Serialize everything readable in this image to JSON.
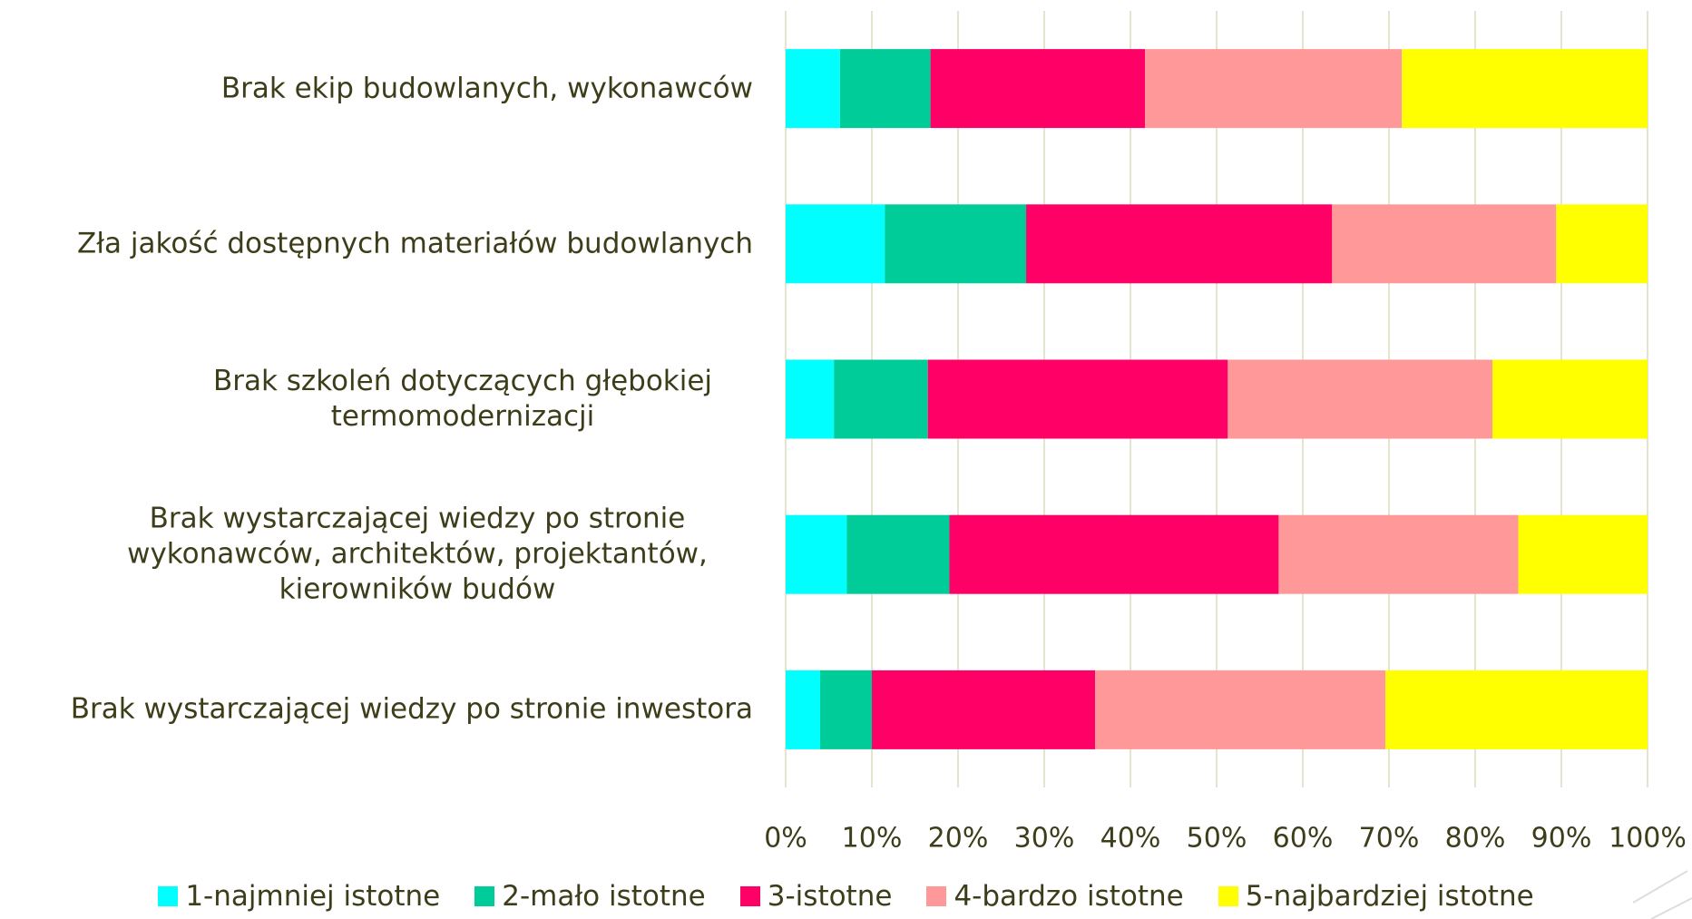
{
  "chart_data": {
    "type": "stacked_bar_horizontal",
    "categories": [
      "Brak ekip budowlanych, wykonawców",
      "Zła jakość dostępnych materiałów budowlanych",
      "Brak szkoleń dotyczących głębokiej termomodernizacji",
      "Brak wystarczającej wiedzy po stronie wykonawców, architektów, projektantów, kierowników budów",
      "Brak wystarczającej wiedzy po stronie inwestora"
    ],
    "series": [
      {
        "name": "1-najmniej istotne",
        "color": "#00ffff",
        "values": [
          6.3,
          11.5,
          5.6,
          7.1,
          4.0
        ]
      },
      {
        "name": "2-mało istotne",
        "color": "#00cc99",
        "values": [
          10.5,
          16.4,
          10.9,
          11.9,
          6.0
        ]
      },
      {
        "name": "3-istotne",
        "color": "#ff0066",
        "values": [
          24.9,
          35.5,
          34.8,
          38.2,
          25.9
        ]
      },
      {
        "name": "4-bardzo istotne",
        "color": "#ff9999",
        "values": [
          29.8,
          26.0,
          30.7,
          27.8,
          33.7
        ]
      },
      {
        "name": "5-najbardziej istotne",
        "color": "#ffff00",
        "values": [
          28.5,
          10.6,
          18.0,
          15.0,
          30.4
        ]
      }
    ],
    "xlim": [
      0,
      100
    ],
    "xticks": [
      {
        "value": 0,
        "label": "0%"
      },
      {
        "value": 10,
        "label": "10%"
      },
      {
        "value": 20,
        "label": "20%"
      },
      {
        "value": 30,
        "label": "30%"
      },
      {
        "value": 40,
        "label": "40%"
      },
      {
        "value": 50,
        "label": "50%"
      },
      {
        "value": 60,
        "label": "60%"
      },
      {
        "value": 70,
        "label": "70%"
      },
      {
        "value": 80,
        "label": "80%"
      },
      {
        "value": 90,
        "label": "90%"
      },
      {
        "value": 100,
        "label": "100%"
      }
    ],
    "grid": true,
    "legend": "bottom"
  }
}
